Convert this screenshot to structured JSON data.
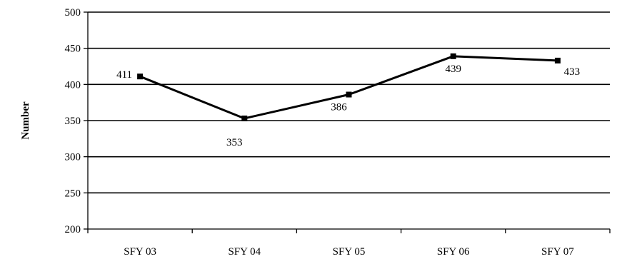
{
  "chart_data": {
    "type": "line",
    "categories": [
      "SFY 03",
      "SFY 04",
      "SFY 05",
      "SFY 06",
      "SFY 07"
    ],
    "series": [
      {
        "values": [
          411,
          353,
          386,
          439,
          433
        ]
      }
    ],
    "data_labels": [
      "411",
      "353",
      "386",
      "439",
      "433"
    ],
    "title": "",
    "xlabel": "",
    "ylabel": "Number",
    "ylim": [
      200,
      500
    ],
    "yticks": [
      200,
      250,
      300,
      350,
      400,
      450,
      500
    ],
    "ytick_labels": [
      "200",
      "250",
      "300",
      "350",
      "400",
      "450",
      "500"
    ],
    "grid": true,
    "legend": "none",
    "colors": {
      "line": "#000000",
      "grid": "#000000"
    }
  }
}
